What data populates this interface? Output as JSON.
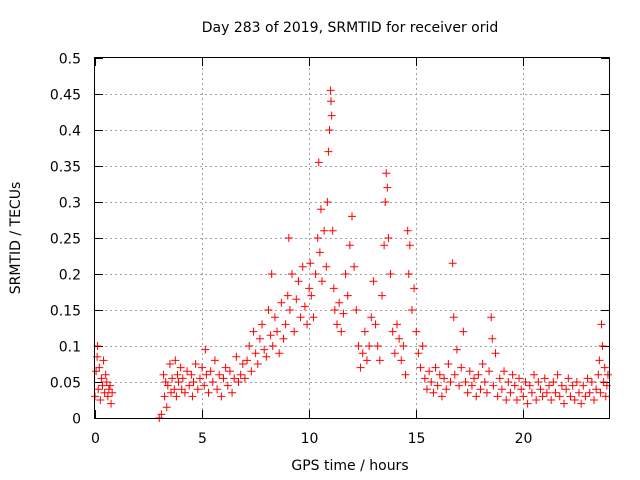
{
  "chart_data": {
    "type": "scatter",
    "title": "Day 283 of 2019, SRMTID for receiver orid",
    "xlabel": "GPS time / hours",
    "ylabel": "SRMTID / TECUs",
    "xlim": [
      0,
      24
    ],
    "ylim": [
      0,
      0.5
    ],
    "xticks": [
      0,
      5,
      10,
      15,
      20
    ],
    "xtick_labels": [
      "0",
      "5",
      "10",
      "15",
      "20"
    ],
    "yticks": [
      0,
      0.05,
      0.1,
      0.15,
      0.2,
      0.25,
      0.3,
      0.35,
      0.4,
      0.45,
      0.5
    ],
    "ytick_labels": [
      "0",
      "0.05",
      "0.1",
      "0.15",
      "0.2",
      "0.25",
      "0.3",
      "0.35",
      "0.4",
      "0.45",
      "0.5"
    ],
    "grid": true,
    "marker": "+",
    "color": "#ff0000",
    "series": [
      {
        "name": "SRMTID",
        "points": [
          [
            0.0,
            0.03
          ],
          [
            0.05,
            0.065
          ],
          [
            0.1,
            0.085
          ],
          [
            0.12,
            0.1
          ],
          [
            0.15,
            0.04
          ],
          [
            0.2,
            0.07
          ],
          [
            0.25,
            0.025
          ],
          [
            0.3,
            0.055
          ],
          [
            0.35,
            0.045
          ],
          [
            0.4,
            0.08
          ],
          [
            0.45,
            0.035
          ],
          [
            0.5,
            0.06
          ],
          [
            0.55,
            0.05
          ],
          [
            0.6,
            0.03
          ],
          [
            0.65,
            0.04
          ],
          [
            0.7,
            0.045
          ],
          [
            0.75,
            0.02
          ],
          [
            0.8,
            0.035
          ],
          [
            3.0,
            0.0
          ],
          [
            3.1,
            0.005
          ],
          [
            3.2,
            0.06
          ],
          [
            3.25,
            0.03
          ],
          [
            3.3,
            0.05
          ],
          [
            3.35,
            0.015
          ],
          [
            3.4,
            0.045
          ],
          [
            3.5,
            0.075
          ],
          [
            3.55,
            0.035
          ],
          [
            3.6,
            0.055
          ],
          [
            3.7,
            0.04
          ],
          [
            3.75,
            0.08
          ],
          [
            3.8,
            0.03
          ],
          [
            3.85,
            0.06
          ],
          [
            3.9,
            0.05
          ],
          [
            4.0,
            0.07
          ],
          [
            4.05,
            0.04
          ],
          [
            4.1,
            0.055
          ],
          [
            4.2,
            0.035
          ],
          [
            4.3,
            0.065
          ],
          [
            4.4,
            0.045
          ],
          [
            4.5,
            0.06
          ],
          [
            4.55,
            0.03
          ],
          [
            4.6,
            0.05
          ],
          [
            4.7,
            0.075
          ],
          [
            4.8,
            0.04
          ],
          [
            4.9,
            0.055
          ],
          [
            5.0,
            0.07
          ],
          [
            5.1,
            0.045
          ],
          [
            5.15,
            0.095
          ],
          [
            5.2,
            0.06
          ],
          [
            5.3,
            0.035
          ],
          [
            5.4,
            0.065
          ],
          [
            5.5,
            0.05
          ],
          [
            5.6,
            0.08
          ],
          [
            5.7,
            0.04
          ],
          [
            5.8,
            0.06
          ],
          [
            5.9,
            0.03
          ],
          [
            6.0,
            0.055
          ],
          [
            6.1,
            0.07
          ],
          [
            6.2,
            0.045
          ],
          [
            6.3,
            0.065
          ],
          [
            6.4,
            0.035
          ],
          [
            6.5,
            0.055
          ],
          [
            6.6,
            0.085
          ],
          [
            6.7,
            0.05
          ],
          [
            6.8,
            0.06
          ],
          [
            6.9,
            0.075
          ],
          [
            7.0,
            0.055
          ],
          [
            7.1,
            0.08
          ],
          [
            7.2,
            0.1
          ],
          [
            7.3,
            0.065
          ],
          [
            7.4,
            0.12
          ],
          [
            7.5,
            0.09
          ],
          [
            7.6,
            0.075
          ],
          [
            7.7,
            0.11
          ],
          [
            7.8,
            0.13
          ],
          [
            7.9,
            0.095
          ],
          [
            8.0,
            0.085
          ],
          [
            8.1,
            0.15
          ],
          [
            8.2,
            0.115
          ],
          [
            8.25,
            0.2
          ],
          [
            8.3,
            0.1
          ],
          [
            8.4,
            0.14
          ],
          [
            8.5,
            0.12
          ],
          [
            8.6,
            0.09
          ],
          [
            8.7,
            0.16
          ],
          [
            8.8,
            0.11
          ],
          [
            8.9,
            0.13
          ],
          [
            9.0,
            0.17
          ],
          [
            9.05,
            0.25
          ],
          [
            9.1,
            0.15
          ],
          [
            9.2,
            0.2
          ],
          [
            9.3,
            0.12
          ],
          [
            9.4,
            0.165
          ],
          [
            9.5,
            0.19
          ],
          [
            9.6,
            0.14
          ],
          [
            9.7,
            0.21
          ],
          [
            9.8,
            0.155
          ],
          [
            9.9,
            0.13
          ],
          [
            10.0,
            0.18
          ],
          [
            10.05,
            0.215
          ],
          [
            10.1,
            0.17
          ],
          [
            10.2,
            0.14
          ],
          [
            10.3,
            0.2
          ],
          [
            10.4,
            0.25
          ],
          [
            10.45,
            0.355
          ],
          [
            10.5,
            0.23
          ],
          [
            10.55,
            0.29
          ],
          [
            10.6,
            0.19
          ],
          [
            10.7,
            0.26
          ],
          [
            10.8,
            0.21
          ],
          [
            10.85,
            0.3
          ],
          [
            10.9,
            0.37
          ],
          [
            10.95,
            0.4
          ],
          [
            11.0,
            0.455
          ],
          [
            11.02,
            0.44
          ],
          [
            11.05,
            0.42
          ],
          [
            11.1,
            0.26
          ],
          [
            11.15,
            0.18
          ],
          [
            11.2,
            0.15
          ],
          [
            11.3,
            0.13
          ],
          [
            11.4,
            0.16
          ],
          [
            11.5,
            0.12
          ],
          [
            11.6,
            0.145
          ],
          [
            11.7,
            0.2
          ],
          [
            11.8,
            0.17
          ],
          [
            11.9,
            0.24
          ],
          [
            12.0,
            0.28
          ],
          [
            12.1,
            0.21
          ],
          [
            12.2,
            0.15
          ],
          [
            12.3,
            0.1
          ],
          [
            12.4,
            0.07
          ],
          [
            12.5,
            0.09
          ],
          [
            12.6,
            0.12
          ],
          [
            12.7,
            0.08
          ],
          [
            12.8,
            0.1
          ],
          [
            12.9,
            0.14
          ],
          [
            13.0,
            0.19
          ],
          [
            13.1,
            0.13
          ],
          [
            13.2,
            0.1
          ],
          [
            13.3,
            0.08
          ],
          [
            13.4,
            0.17
          ],
          [
            13.5,
            0.24
          ],
          [
            13.55,
            0.3
          ],
          [
            13.6,
            0.34
          ],
          [
            13.65,
            0.32
          ],
          [
            13.7,
            0.25
          ],
          [
            13.8,
            0.2
          ],
          [
            13.9,
            0.12
          ],
          [
            14.0,
            0.09
          ],
          [
            14.1,
            0.13
          ],
          [
            14.2,
            0.11
          ],
          [
            14.3,
            0.08
          ],
          [
            14.4,
            0.1
          ],
          [
            14.5,
            0.06
          ],
          [
            14.6,
            0.26
          ],
          [
            14.65,
            0.2
          ],
          [
            14.7,
            0.24
          ],
          [
            14.8,
            0.15
          ],
          [
            14.9,
            0.18
          ],
          [
            15.0,
            0.12
          ],
          [
            15.1,
            0.09
          ],
          [
            15.2,
            0.07
          ],
          [
            15.3,
            0.1
          ],
          [
            15.4,
            0.055
          ],
          [
            15.5,
            0.04
          ],
          [
            15.6,
            0.065
          ],
          [
            15.7,
            0.05
          ],
          [
            15.8,
            0.035
          ],
          [
            15.9,
            0.07
          ],
          [
            16.0,
            0.045
          ],
          [
            16.1,
            0.06
          ],
          [
            16.2,
            0.03
          ],
          [
            16.3,
            0.055
          ],
          [
            16.4,
            0.04
          ],
          [
            16.5,
            0.075
          ],
          [
            16.6,
            0.05
          ],
          [
            16.7,
            0.215
          ],
          [
            16.75,
            0.14
          ],
          [
            16.8,
            0.06
          ],
          [
            16.9,
            0.095
          ],
          [
            17.0,
            0.045
          ],
          [
            17.1,
            0.07
          ],
          [
            17.2,
            0.12
          ],
          [
            17.3,
            0.05
          ],
          [
            17.4,
            0.035
          ],
          [
            17.5,
            0.065
          ],
          [
            17.6,
            0.045
          ],
          [
            17.7,
            0.055
          ],
          [
            17.8,
            0.03
          ],
          [
            17.9,
            0.06
          ],
          [
            18.0,
            0.04
          ],
          [
            18.1,
            0.075
          ],
          [
            18.2,
            0.05
          ],
          [
            18.3,
            0.035
          ],
          [
            18.4,
            0.065
          ],
          [
            18.5,
            0.14
          ],
          [
            18.55,
            0.11
          ],
          [
            18.6,
            0.045
          ],
          [
            18.7,
            0.09
          ],
          [
            18.8,
            0.03
          ],
          [
            18.9,
            0.055
          ],
          [
            19.0,
            0.04
          ],
          [
            19.1,
            0.065
          ],
          [
            19.2,
            0.025
          ],
          [
            19.3,
            0.05
          ],
          [
            19.4,
            0.035
          ],
          [
            19.5,
            0.06
          ],
          [
            19.6,
            0.045
          ],
          [
            19.7,
            0.025
          ],
          [
            19.8,
            0.055
          ],
          [
            19.9,
            0.04
          ],
          [
            20.0,
            0.03
          ],
          [
            20.1,
            0.05
          ],
          [
            20.2,
            0.02
          ],
          [
            20.3,
            0.045
          ],
          [
            20.4,
            0.035
          ],
          [
            20.5,
            0.06
          ],
          [
            20.6,
            0.025
          ],
          [
            20.7,
            0.05
          ],
          [
            20.8,
            0.04
          ],
          [
            20.9,
            0.03
          ],
          [
            21.0,
            0.055
          ],
          [
            21.1,
            0.035
          ],
          [
            21.2,
            0.045
          ],
          [
            21.3,
            0.025
          ],
          [
            21.4,
            0.05
          ],
          [
            21.5,
            0.035
          ],
          [
            21.6,
            0.06
          ],
          [
            21.7,
            0.03
          ],
          [
            21.8,
            0.045
          ],
          [
            21.9,
            0.02
          ],
          [
            22.0,
            0.04
          ],
          [
            22.1,
            0.055
          ],
          [
            22.2,
            0.03
          ],
          [
            22.3,
            0.045
          ],
          [
            22.4,
            0.025
          ],
          [
            22.5,
            0.05
          ],
          [
            22.6,
            0.035
          ],
          [
            22.7,
            0.02
          ],
          [
            22.8,
            0.045
          ],
          [
            22.9,
            0.03
          ],
          [
            23.0,
            0.055
          ],
          [
            23.1,
            0.035
          ],
          [
            23.2,
            0.05
          ],
          [
            23.3,
            0.025
          ],
          [
            23.4,
            0.04
          ],
          [
            23.5,
            0.06
          ],
          [
            23.55,
            0.08
          ],
          [
            23.6,
            0.035
          ],
          [
            23.65,
            0.13
          ],
          [
            23.7,
            0.1
          ],
          [
            23.75,
            0.05
          ],
          [
            23.8,
            0.07
          ],
          [
            23.85,
            0.03
          ],
          [
            23.9,
            0.045
          ],
          [
            23.95,
            0.06
          ]
        ]
      }
    ]
  }
}
